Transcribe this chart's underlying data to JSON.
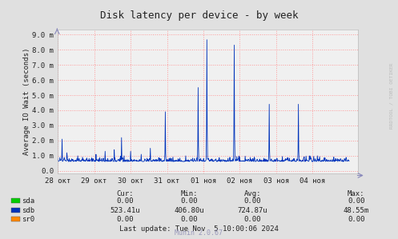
{
  "title": "Disk latency per device - by week",
  "ylabel": "Average IO Wait (seconds)",
  "background_color": "#e0e0e0",
  "plot_bg_color": "#f0f0f0",
  "grid_color": "#ff9999",
  "x_ticks_labels": [
    "28 окт",
    "29 окт",
    "30 окт",
    "31 окт",
    "01 ноя",
    "02 ноя",
    "03 ноя",
    "04 ноя"
  ],
  "y_ticks": [
    0.0,
    1.0,
    2.0,
    3.0,
    4.0,
    5.0,
    6.0,
    7.0,
    8.0,
    9.0
  ],
  "y_tick_labels": [
    "0.0",
    "1.0 m",
    "2.0 m",
    "3.0 m",
    "4.0 m",
    "5.0 m",
    "6.0 m",
    "7.0 m",
    "8.0 m",
    "9.0 m"
  ],
  "ylim": [
    -0.15,
    9.3
  ],
  "xlim": [
    0,
    8.25
  ],
  "line_color": "#0033bb",
  "legend_entries": [
    {
      "label": "sda",
      "color": "#00cc00"
    },
    {
      "label": "sdb",
      "color": "#0033bb"
    },
    {
      "label": "sr0",
      "color": "#ff8800"
    }
  ],
  "footer_text": "Last update: Tue Nov  5 10:00:06 2024",
  "munin_version": "Munin 2.0.67",
  "cur_label": "Cur:",
  "min_label": "Min:",
  "avg_label": "Avg:",
  "max_label": "Max:",
  "stats": [
    {
      "name": "sda",
      "cur": "0.00",
      "min": "0.00",
      "avg": "0.00",
      "max": "0.00"
    },
    {
      "name": "sdb",
      "cur": "523.41u",
      "min": "406.80u",
      "avg": "724.87u",
      "max": "48.55m"
    },
    {
      "name": "sr0",
      "cur": "0.00",
      "min": "0.00",
      "avg": "0.00",
      "max": "0.00"
    }
  ],
  "rrdtool_label": "RRDTOOL / TOBI OETIKER"
}
